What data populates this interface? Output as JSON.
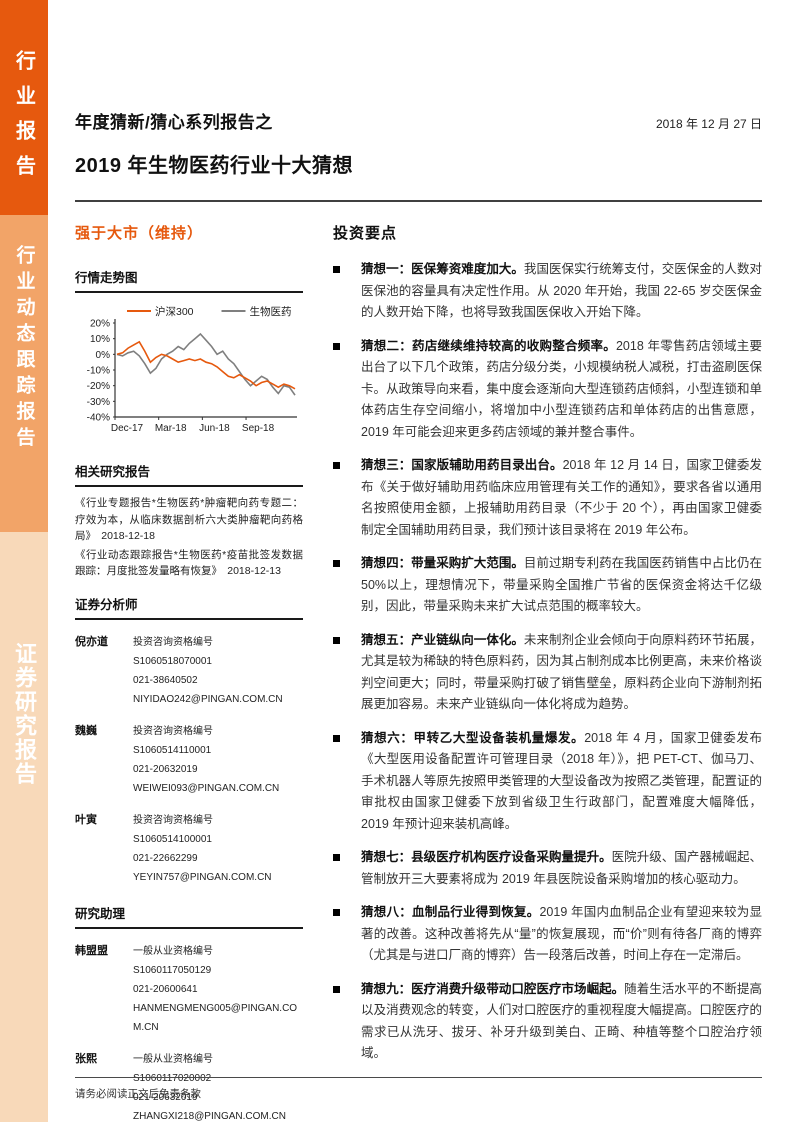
{
  "accent_color": "#E6590E",
  "sidebar": {
    "segments": [
      {
        "label": "行业报告",
        "color": "#E6590E"
      },
      {
        "label": "行业动态跟踪报告",
        "color": "#F2A468"
      },
      {
        "label": "证券研究报告",
        "color": "#F8D9B9"
      }
    ]
  },
  "header": {
    "series_title": "年度猜新/猜心系列报告之",
    "date": "2018 年 12 月 27 日",
    "main_title": "2019 年生物医药行业十大猜想"
  },
  "rating": {
    "label": "强于大市（维持）"
  },
  "chart_section": {
    "heading": "行情走势图"
  },
  "chart_data": {
    "type": "line",
    "title": "行情走势图",
    "x_ticks": [
      "Dec-17",
      "Mar-18",
      "Jun-18",
      "Sep-18"
    ],
    "y_ticks": [
      "20%",
      "10%",
      "0%",
      "-10%",
      "-20%",
      "-30%",
      "-40%"
    ],
    "ylim": [
      -40,
      20
    ],
    "grid": false,
    "legend_position": "top",
    "series": [
      {
        "name": "沪深300",
        "color": "#E6590E",
        "values": [
          0,
          1,
          4,
          6,
          8,
          2,
          -5,
          -2,
          0,
          -1,
          -3,
          -5,
          -4,
          -3,
          -4,
          -3,
          -5,
          -6,
          -8,
          -11,
          -14,
          -15,
          -13,
          -15,
          -17,
          -20,
          -18,
          -17,
          -19,
          -21,
          -19,
          -20,
          -22
        ]
      },
      {
        "name": "生物医药",
        "color": "#7F7F7F",
        "values": [
          0,
          -1,
          1,
          2,
          -1,
          -6,
          -12,
          -9,
          -3,
          0,
          2,
          5,
          3,
          7,
          10,
          13,
          9,
          5,
          0,
          2,
          -3,
          -6,
          -11,
          -16,
          -20,
          -17,
          -14,
          -16,
          -21,
          -25,
          -20,
          -21,
          -26
        ]
      }
    ]
  },
  "related_reports": {
    "heading": "相关研究报告",
    "items": [
      {
        "title": "《行业专题报告*生物医药*肿瘤靶向药专题二：疗效为本，从临床数据剖析六大类肿瘤靶向药格局》",
        "date": "2018-12-18"
      },
      {
        "title": "《行业动态跟踪报告*生物医药*疫苗批签发数据跟踪：月度批签发量略有恢复》",
        "date": "2018-12-13"
      }
    ]
  },
  "analysts": {
    "heading": "证券分析师",
    "items": [
      {
        "name": "倪亦道",
        "cred_label": "投资咨询资格编号",
        "cred_no": "S1060518070001",
        "phone": "021-38640502",
        "email": "NIYIDAO242@PINGAN.COM.CN"
      },
      {
        "name": "魏巍",
        "cred_label": "投资咨询资格编号",
        "cred_no": "S1060514110001",
        "phone": "021-20632019",
        "email": "WEIWEI093@PINGAN.COM.CN"
      },
      {
        "name": "叶寅",
        "cred_label": "投资咨询资格编号",
        "cred_no": "S1060514100001",
        "phone": "021-22662299",
        "email": "YEYIN757@PINGAN.COM.CN"
      }
    ]
  },
  "assistants": {
    "heading": "研究助理",
    "items": [
      {
        "name": "韩盟盟",
        "cred_label": "一般从业资格编号",
        "cred_no": "S1060117050129",
        "phone": "021-20600641",
        "email": "HANMENGMENG005@PINGAN.COM.CN"
      },
      {
        "name": "张熙",
        "cred_label": "一般从业资格编号",
        "cred_no": "S1060117020002",
        "phone": "021-20632019",
        "email": "ZHANGXI218@PINGAN.COM.CN"
      }
    ]
  },
  "key_points": {
    "heading": "投资要点",
    "bullets": [
      {
        "lead": "猜想一：医保筹资难度加大。",
        "body": "我国医保实行统筹支付，交医保金的人数对医保池的容量具有决定性作用。从 2020 年开始，我国 22-65 岁交医保金的人数开始下降，也将导致我国医保收入开始下降。"
      },
      {
        "lead": "猜想二：药店继续维持较高的收购整合频率。",
        "body": "2018 年零售药店领域主要出台了以下几个政策，药店分级分类，小规模纳税人减税，打击盗刷医保卡。从政策导向来看，集中度会逐渐向大型连锁药店倾斜，小型连锁和单体药店生存空间缩小，将增加中小型连锁药店和单体药店的出售意愿，2019 年可能会迎来更多药店领域的兼并整合事件。"
      },
      {
        "lead": "猜想三：国家版辅助用药目录出台。",
        "body": "2018 年 12 月 14 日，国家卫健委发布《关于做好辅助用药临床应用管理有关工作的通知》，要求各省以通用名按照使用金额，上报辅助用药目录（不少于 20 个），再由国家卫健委制定全国辅助用药目录，我们预计该目录将在 2019 年公布。"
      },
      {
        "lead": "猜想四：带量采购扩大范围。",
        "body": "目前过期专利药在我国医药销售中占比仍在 50%以上，理想情况下，带量采购全国推广节省的医保资金将达千亿级别，因此，带量采购未来扩大试点范围的概率较大。"
      },
      {
        "lead": "猜想五：产业链纵向一体化。",
        "body": "未来制剂企业会倾向于向原料药环节拓展，尤其是较为稀缺的特色原料药，因为其占制剂成本比例更高，未来价格谈判空间更大；同时，带量采购打破了销售壁垒，原料药企业向下游制剂拓展更加容易。未来产业链纵向一体化将成为趋势。"
      },
      {
        "lead": "猜想六：甲转乙大型设备装机量爆发。",
        "body": "2018 年 4 月，国家卫健委发布《大型医用设备配置许可管理目录（2018 年）》，把 PET-CT、伽马刀、手术机器人等原先按照甲类管理的大型设备改为按照乙类管理，配置证的审批权由国家卫健委下放到省级卫生行政部门，配置难度大幅降低，2019 年预计迎来装机高峰。"
      },
      {
        "lead": "猜想七：县级医疗机构医疗设备采购量提升。",
        "body": "医院升级、国产器械崛起、管制放开三大要素将成为 2019 年县医院设备采购增加的核心驱动力。"
      },
      {
        "lead": "猜想八：血制品行业得到恢复。",
        "body": "2019 年国内血制品企业有望迎来较为显著的改善。这种改善将先从“量”的恢复展现，而“价”则有待各厂商的博弈（尤其是与进口厂商的博弈）告一段落后改善，时间上存在一定滞后。"
      },
      {
        "lead": "猜想九：医疗消费升级带动口腔医疗市场崛起。",
        "body": "随着生活水平的不断提高以及消费观念的转变，人们对口腔医疗的重视程度大幅提高。口腔医疗的需求已从洗牙、拔牙、补牙升级到美白、正畸、种植等整个口腔治疗领域。"
      }
    ]
  },
  "footer": {
    "disclaimer": "请务必阅读正文后免责条款"
  }
}
